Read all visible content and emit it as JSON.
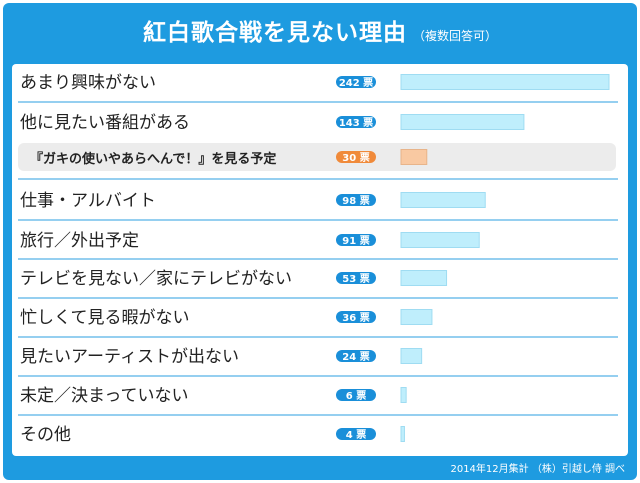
{
  "header": {
    "title": "紅白歌合戦を見ない理由",
    "subtitle": "（複数回答可）"
  },
  "footer": "2014年12月集計 （株）引越し侍 調べ",
  "unit": "票",
  "colors": {
    "frame": "#1e9be0",
    "badge": "#1a8fd9",
    "badge_sub": "#f08a3a",
    "bar": "#bfeefc",
    "bar_sub": "#f9c9a2",
    "sub_row_bg": "#ececec",
    "divider": "#2b9fe0"
  },
  "chart_data": {
    "type": "bar",
    "orientation": "horizontal",
    "title": "紅白歌合戦を見ない理由",
    "categories": [
      "あまり興味がない",
      "他に見たい番組がある",
      "『ガキの使いやあらへんで！』を見る予定",
      "仕事・アルバイト",
      "旅行／外出予定",
      "テレビを見ない／家にテレビがない",
      "忙しくて見る暇がない",
      "見たいアーティストが出ない",
      "未定／決まっていない",
      "その他"
    ],
    "values": [
      242,
      143,
      30,
      98,
      91,
      53,
      36,
      24,
      6,
      4
    ],
    "sub_item_index": 2,
    "xlim": [
      0,
      242
    ]
  }
}
